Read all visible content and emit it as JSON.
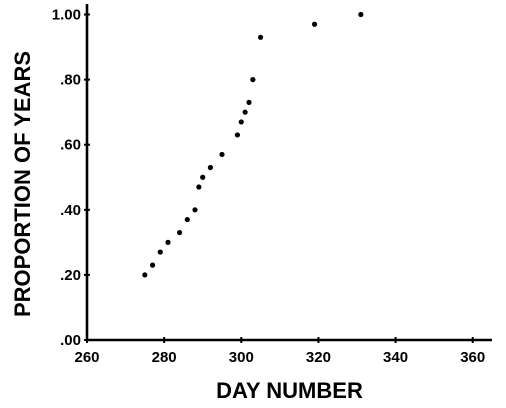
{
  "chart_data": {
    "type": "scatter",
    "title": "",
    "xlabel": "DAY NUMBER",
    "ylabel": "PROPORTION OF YEARS",
    "xlim": [
      260,
      365
    ],
    "ylim": [
      0,
      1.02
    ],
    "x_ticks": [
      260,
      280,
      300,
      320,
      340,
      360
    ],
    "x_tick_labels": [
      "260",
      "280",
      "300",
      "320",
      "340",
      "360"
    ],
    "y_ticks": [
      0,
      0.2,
      0.4,
      0.6,
      0.8,
      1.0
    ],
    "y_tick_labels": [
      ".00",
      ".20",
      ".40",
      ".60",
      ".80",
      "1.00"
    ],
    "grid": false,
    "legend": "none",
    "point_color": "#000000",
    "points": [
      {
        "x": 275,
        "y": 0.2
      },
      {
        "x": 277,
        "y": 0.23
      },
      {
        "x": 279,
        "y": 0.27
      },
      {
        "x": 281,
        "y": 0.3
      },
      {
        "x": 284,
        "y": 0.33
      },
      {
        "x": 286,
        "y": 0.37
      },
      {
        "x": 288,
        "y": 0.4
      },
      {
        "x": 289,
        "y": 0.47
      },
      {
        "x": 290,
        "y": 0.5
      },
      {
        "x": 292,
        "y": 0.53
      },
      {
        "x": 295,
        "y": 0.57
      },
      {
        "x": 299,
        "y": 0.63
      },
      {
        "x": 300,
        "y": 0.67
      },
      {
        "x": 301,
        "y": 0.7
      },
      {
        "x": 302,
        "y": 0.73
      },
      {
        "x": 303,
        "y": 0.8
      },
      {
        "x": 305,
        "y": 0.93
      },
      {
        "x": 319,
        "y": 0.97
      },
      {
        "x": 331,
        "y": 1.0
      }
    ]
  }
}
